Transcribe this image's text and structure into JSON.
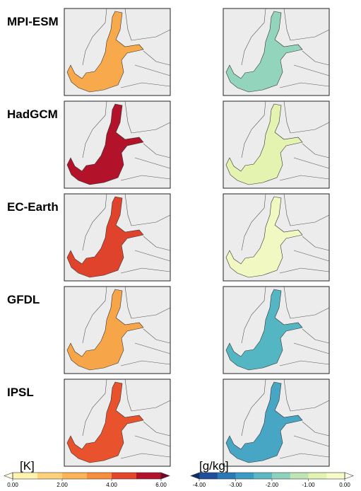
{
  "rows": [
    {
      "label": "MPI-ESM",
      "temp_color": "#f7a94b",
      "salt_color": "#93d4bd"
    },
    {
      "label": "HadGCM",
      "temp_color": "#b3122b",
      "salt_color": "#e4f4b0"
    },
    {
      "label": "EC-Earth",
      "temp_color": "#e0432b",
      "salt_color": "#f1f8c2"
    },
    {
      "label": "GFDL",
      "temp_color": "#f6a649",
      "salt_color": "#55b6c3"
    },
    {
      "label": "IPSL",
      "temp_color": "#e8522c",
      "salt_color": "#47a6c4"
    }
  ],
  "colorbars": [
    {
      "label": "[K]",
      "lim": [
        0,
        6
      ],
      "ticks": [
        {
          "value": 0,
          "label": "0.00"
        },
        {
          "value": 2,
          "label": "2.00"
        },
        {
          "value": 4,
          "label": "4.00"
        },
        {
          "value": 6,
          "label": "6.00"
        }
      ],
      "colors": [
        "#fff3b0",
        "#fed27a",
        "#fdb456",
        "#f88d3c",
        "#e4452b",
        "#b3122b"
      ],
      "under_color": "#fffbe0",
      "over_color": "#7a0026"
    },
    {
      "label": "[g/kg]",
      "lim": [
        -4,
        0
      ],
      "ticks": [
        {
          "value": -4,
          "label": "-4.00"
        },
        {
          "value": -3,
          "label": "-3.00"
        },
        {
          "value": -2,
          "label": "-2.00"
        },
        {
          "value": -1,
          "label": "-1.00"
        },
        {
          "value": 0,
          "label": "0.00"
        }
      ],
      "colors": [
        "#1f4e9c",
        "#2a78b5",
        "#3a9bc4",
        "#5cb9c4",
        "#8ed1bc",
        "#bfe5b4",
        "#e2f3b2",
        "#f7fbc8"
      ],
      "under_color": "#0c2c6e",
      "over_color": "#fffff0"
    }
  ]
}
